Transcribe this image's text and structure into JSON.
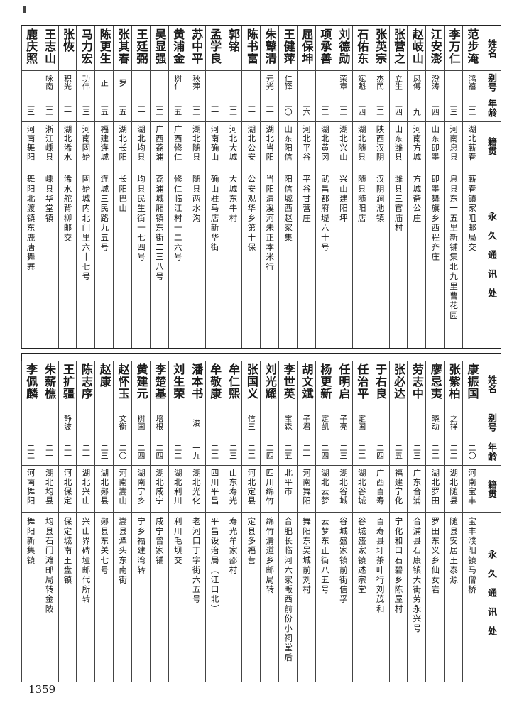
{
  "headers": {
    "name": "姓名",
    "alias": "别号",
    "age": "年龄",
    "hometown": "籍贯",
    "address": "永久通讯处"
  },
  "top_rows": [
    {
      "name": "范步淹",
      "alias": "鸿禧",
      "age": "二二",
      "hometown": "湖北蕲春",
      "address": "蕲春镇家咀邮局交"
    },
    {
      "name": "李万仁",
      "alias": "",
      "age": "二三",
      "hometown": "河南息县",
      "address": "息县东一五里新铺集北九里曹花园"
    },
    {
      "name": "江安澎",
      "alias": "澄涛",
      "age": "二四",
      "hometown": "山东即墨",
      "address": "即墨舞旗乡西程齐庄"
    },
    {
      "name": "赵岐山",
      "alias": "凤傅",
      "age": "一九",
      "hometown": "河南方城",
      "address": "方城斋公庄"
    },
    {
      "name": "张营之",
      "alias": "立生",
      "age": "二四",
      "hometown": "山东潍县",
      "address": "潍县三官庙村"
    },
    {
      "name": "张英宗",
      "alias": "杰民",
      "age": "二二",
      "hometown": "陕西汉阴",
      "address": "汉阴涧池镇"
    },
    {
      "name": "石佑东",
      "alias": "斌魁",
      "age": "二四",
      "hometown": "湖北随县",
      "address": "随县随阳店"
    },
    {
      "name": "刘德勋",
      "alias": "荣章",
      "age": "二二",
      "hometown": "湖北兴山",
      "address": "兴山建阳坪"
    },
    {
      "name": "项承善",
      "alias": "",
      "age": "二二",
      "hometown": "湖北黄冈",
      "address": "武昌都府堤六十号"
    },
    {
      "name": "屈保坤",
      "alias": "",
      "age": "二六",
      "hometown": "河北平谷",
      "address": "平谷甘营庄"
    },
    {
      "name": "王健萍",
      "alias": "仁铎",
      "age": "二〇",
      "hometown": "山东阳信",
      "address": "阳信城西赵家集"
    },
    {
      "name": "朱鼙清",
      "alias": "元光",
      "age": "二一",
      "hometown": "湖北当阳",
      "address": "当阳清溪河朱正本米行"
    },
    {
      "name": "陈书富",
      "alias": "",
      "age": "二一",
      "hometown": "湖北公安",
      "address": "公安观华乡第十保"
    },
    {
      "name": "郭铭",
      "alias": "",
      "age": "二二",
      "hometown": "河北大城",
      "address": "大城东牛村"
    },
    {
      "name": "孟学良",
      "alias": "",
      "age": "二一",
      "hometown": "河南确山",
      "address": "确山驻马店新华街"
    },
    {
      "name": "苏中平",
      "alias": "秋萍",
      "age": "二二",
      "hometown": "湖北随县",
      "address": "随县两水沟"
    },
    {
      "name": "黄浦金",
      "alias": "树仁",
      "age": "二五",
      "hometown": "广西修仁",
      "address": "修仁临江村一二六号"
    },
    {
      "name": "吴显强",
      "alias": "",
      "age": "二二",
      "hometown": "广西荔浦",
      "address": "荔浦城厢镇东街二三八号"
    },
    {
      "name": "王廷弼",
      "alias": "",
      "age": "二一",
      "hometown": "湖北均县",
      "address": "均县民生街一七四号"
    },
    {
      "name": "张其春",
      "alias": "罗",
      "age": "二五",
      "hometown": "湖北长阳",
      "address": "长阳巴山"
    },
    {
      "name": "陈更生",
      "alias": "正",
      "age": "二五",
      "hometown": "福建连城",
      "address": "连城三民路九五号"
    },
    {
      "name": "马力宏",
      "alias": "功伟",
      "age": "二三",
      "hometown": "河南固始",
      "address": "固始城内北门里六十七号"
    },
    {
      "name": "张恢",
      "alias": "积光",
      "age": "二一",
      "hometown": "湖北浠水",
      "address": "浠水舵背柳邮交"
    },
    {
      "name": "王志山",
      "alias": "咏南",
      "age": "二二",
      "hometown": "浙江嵊县",
      "address": "嵊县华堂镇"
    },
    {
      "name": "鹿庆照",
      "alias": "",
      "age": "二三",
      "hometown": "河南舞阳",
      "address": "舞阳北渡镇东鹿唐舞寨"
    }
  ],
  "bottom_rows": [
    {
      "name": "康振国",
      "alias": "",
      "age": "二〇",
      "hometown": "河南宝丰",
      "address": "宝丰濮阳镇马僧桥"
    },
    {
      "name": "张紫柏",
      "alias": "之祥",
      "age": "二二",
      "hometown": "湖北随县",
      "address": "随县安居王泰源"
    },
    {
      "name": "廖忌夷",
      "alias": "晓动",
      "age": "二二",
      "hometown": "湖北罗田",
      "address": "罗田东义乡仙女岩"
    },
    {
      "name": "劳志中",
      "alias": "",
      "age": "二三",
      "hometown": "广东合浦",
      "address": "合浦县石康镇大街劳永兴号"
    },
    {
      "name": "张必达",
      "alias": "",
      "age": "二五",
      "hometown": "福建宁化",
      "address": "宁化和口石碧乡陈屋村"
    },
    {
      "name": "于右良",
      "alias": "",
      "age": "二四",
      "hometown": "广西百寿",
      "address": "百寿县圩茶叶行刘茂和"
    },
    {
      "name": "任治平",
      "alias": "定国",
      "age": "二二",
      "hometown": "湖北谷城",
      "address": "谷城盛家镇述宗堂"
    },
    {
      "name": "任明启",
      "alias": "子亮",
      "age": "二三",
      "hometown": "湖北谷城",
      "address": "谷城盛家镇前街信孚"
    },
    {
      "name": "杨更新",
      "alias": "定凯",
      "age": "二四",
      "hometown": "湖北云梦",
      "address": "云梦东正街八五号"
    },
    {
      "name": "胡文斌",
      "alias": "子君",
      "age": "二一",
      "hometown": "河南舞阳",
      "address": "舞阳东吴城前刘村"
    },
    {
      "name": "李世英",
      "alias": "宝森",
      "age": "二五",
      "hometown": "北平市",
      "address": "合肥长临河六家畈西前份小祠堂后"
    },
    {
      "name": "刘光耀",
      "alias": "",
      "age": "二四",
      "hometown": "四川绵竹",
      "address": "绵竹清道乡邮局转"
    },
    {
      "name": "张国义",
      "alias": "信三",
      "age": "二二",
      "hometown": "河北定县",
      "address": "定县多福营"
    },
    {
      "name": "牟仁熙",
      "alias": "",
      "age": "二三",
      "hometown": "山东寿光",
      "address": "寿光牟家邵村"
    },
    {
      "name": "牟敬康",
      "alias": "",
      "age": "二二",
      "hometown": "四川平昌",
      "address": "平昌设治局（江口北）"
    },
    {
      "name": "潘本书",
      "alias": "浚",
      "age": "一九",
      "hometown": "湖北光化",
      "address": "老河口丁字街六五号"
    },
    {
      "name": "刘生荣",
      "alias": "",
      "age": "二二",
      "hometown": "湖北利川",
      "address": "利川毛坝交"
    },
    {
      "name": "李楚基",
      "alias": "培根",
      "age": "二四",
      "hometown": "湖北咸宁",
      "address": "咸宁曾家铺"
    },
    {
      "name": "黄建元",
      "alias": "树国",
      "age": "二四",
      "hometown": "湖南宁乡",
      "address": "宁乡福建湾转"
    },
    {
      "name": "赵怀玉",
      "alias": "文衡",
      "age": "二〇",
      "hometown": "河南嵩山",
      "address": "嵩县潭头东南街"
    },
    {
      "name": "赵康",
      "alias": "",
      "age": "二三",
      "hometown": "湖北郧县",
      "address": "郧县东关七号"
    },
    {
      "name": "陈志序",
      "alias": "",
      "age": "二一",
      "hometown": "湖北兴山",
      "address": "兴山界碑垭邮代所转"
    },
    {
      "name": "王扩疆",
      "alias": "静波",
      "age": "二一",
      "hometown": "河北保定",
      "address": "保定城南王盘镇"
    },
    {
      "name": "朱薪樵",
      "alias": "",
      "age": "二一",
      "hometown": "湖北均县",
      "address": "均县石门滩邮局转金陂"
    },
    {
      "name": "李佩麟",
      "alias": "",
      "age": "二二",
      "hometown": "河南舞阳",
      "address": "舞阳新集镇"
    }
  ],
  "page_number": "1359"
}
